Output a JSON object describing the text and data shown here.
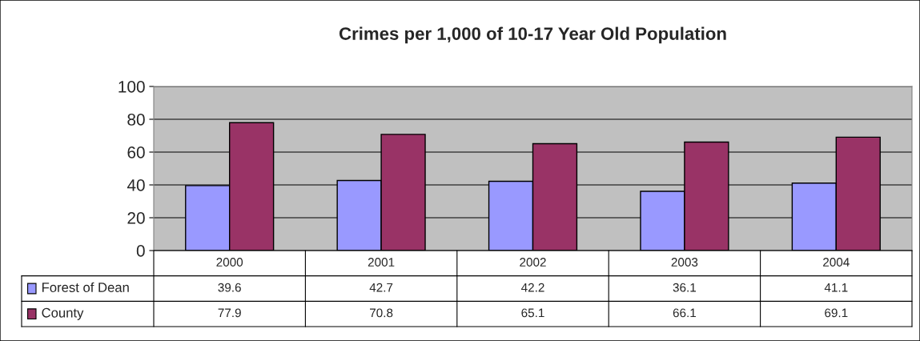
{
  "chart_data": {
    "type": "bar",
    "title": "Crimes per 1,000 of 10-17 Year Old Population",
    "categories": [
      "2000",
      "2001",
      "2002",
      "2003",
      "2004"
    ],
    "series": [
      {
        "name": "Forest of Dean",
        "color": "#9999ff",
        "values": [
          39.6,
          42.7,
          42.2,
          36.1,
          41.1
        ]
      },
      {
        "name": "County",
        "color": "#993366",
        "values": [
          77.9,
          70.8,
          65.1,
          66.1,
          69.1
        ]
      }
    ],
    "ylim": [
      0,
      100
    ],
    "yticks": [
      0,
      20,
      40,
      60,
      80,
      100
    ],
    "grid": "y",
    "data_labels": true,
    "legend": "bottom left"
  }
}
